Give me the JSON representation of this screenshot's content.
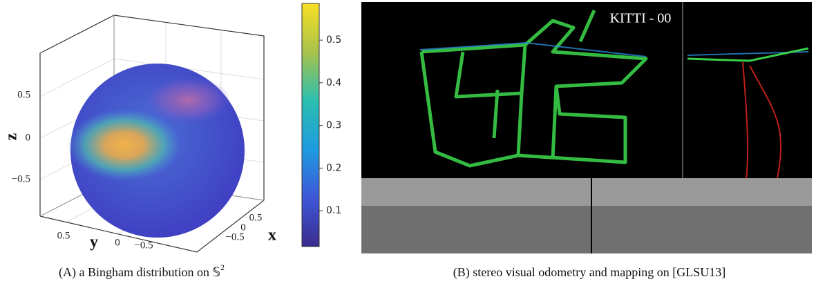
{
  "panel_a": {
    "axes": {
      "z_label": "z",
      "y_label": "y",
      "x_label": "x",
      "z_ticks": [
        "0.5",
        "0",
        "−0.5"
      ],
      "y_ticks": [
        "0.5",
        "0",
        "−0.5"
      ],
      "x_ticks": [
        "0.5",
        "0",
        "−0.5"
      ]
    },
    "colorbar": {
      "lim": [
        0.016,
        0.586
      ],
      "ticks": [
        0.1,
        0.2,
        0.3,
        0.4,
        0.5
      ]
    },
    "caption": "(A) a Bingham distribution on 𝕊",
    "caption_superscript": "2"
  },
  "panel_b": {
    "overlay_label": "KITTI - 00",
    "caption": "(B) stereo visual odometry and mapping on [GLSU13]"
  }
}
